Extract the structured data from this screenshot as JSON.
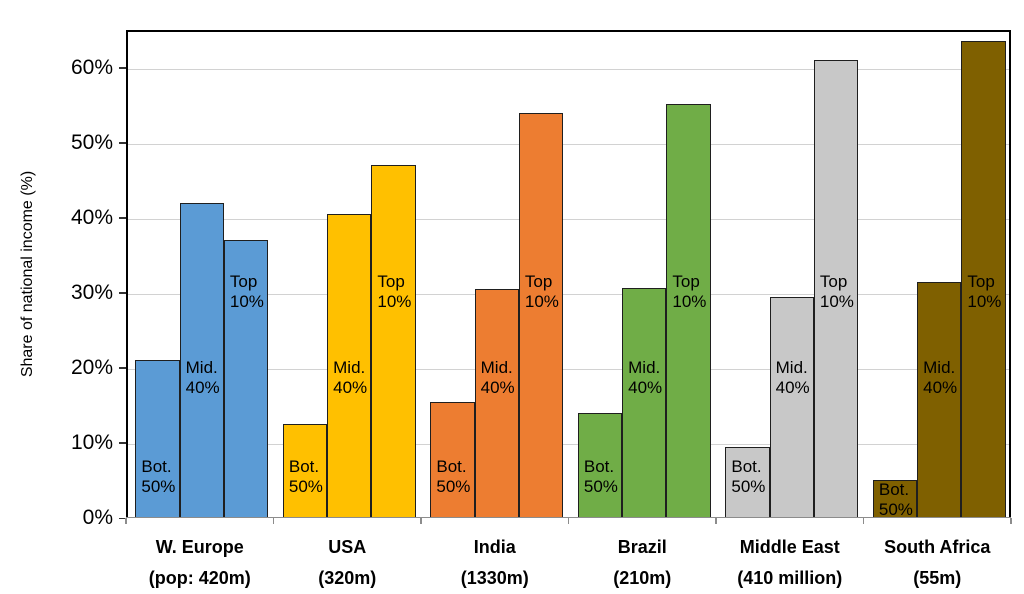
{
  "chart_data": {
    "type": "bar",
    "title": "",
    "ylabel": "Share of national income (%)",
    "xlabel": "",
    "ylim": [
      0,
      65
    ],
    "grid": true,
    "yticks": [
      {
        "value": 0,
        "label": "0%"
      },
      {
        "value": 10,
        "label": "10%"
      },
      {
        "value": 20,
        "label": "20%"
      },
      {
        "value": 30,
        "label": "30%"
      },
      {
        "value": 40,
        "label": "40%"
      },
      {
        "value": 50,
        "label": "50%"
      },
      {
        "value": 60,
        "label": "60%"
      }
    ],
    "series": [
      {
        "key": "bottom50",
        "label": "Bot.\n50%"
      },
      {
        "key": "middle40",
        "label": "Mid.\n40%"
      },
      {
        "key": "top10",
        "label": "Top\n10%"
      }
    ],
    "categories": [
      {
        "name": "W. Europe",
        "pop": "(pop: 420m)",
        "color": "#5B9BD5",
        "values": [
          21,
          42,
          37
        ]
      },
      {
        "name": "USA",
        "pop": "(320m)",
        "color": "#FFC000",
        "values": [
          12.5,
          40.5,
          47
        ]
      },
      {
        "name": "India",
        "pop": "(1330m)",
        "color": "#ED7D31",
        "values": [
          15.5,
          30.5,
          54
        ]
      },
      {
        "name": "Brazil",
        "pop": "(210m)",
        "color": "#70AD47",
        "values": [
          14,
          30.6,
          55.2
        ]
      },
      {
        "name": "Middle East",
        "pop": "(410 million)",
        "color": "#C8C8C8",
        "values": [
          9.5,
          29.5,
          61
        ]
      },
      {
        "name": "South Africa",
        "pop": "(55m)",
        "color": "#7F6000",
        "values": [
          5,
          31.5,
          63.5
        ]
      }
    ],
    "colors": {
      "gridline": "#D2D2D2",
      "axis": "#8C8C8C",
      "bar_border": "#1F1F1F",
      "text": "#000000"
    },
    "legend": "none"
  }
}
